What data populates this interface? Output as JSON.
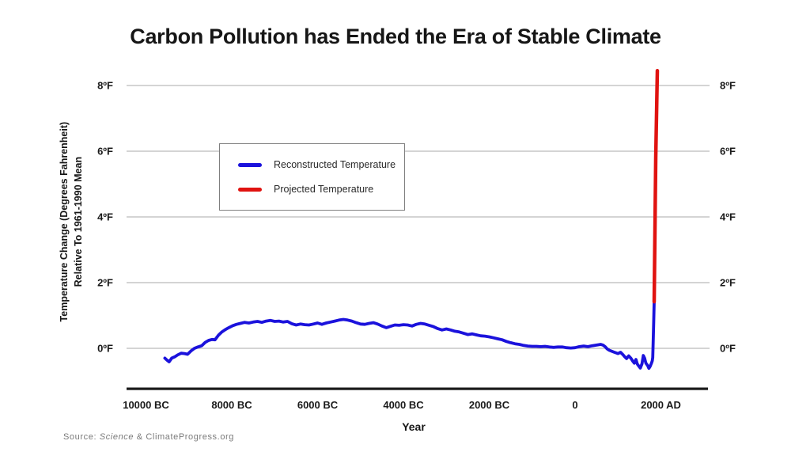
{
  "title": "Carbon Pollution has Ended the Era of Stable Climate",
  "source": {
    "prefix": "Source: ",
    "italic": "Science",
    "rest": " & ClimateProgress.org"
  },
  "chart_data": {
    "type": "line",
    "title": "Carbon Pollution has Ended the Era of Stable Climate",
    "x_axis": {
      "label": "Year",
      "ticks": [
        {
          "year": -10000,
          "label": "10000 BC"
        },
        {
          "year": -8000,
          "label": "8000 BC"
        },
        {
          "year": -6000,
          "label": "6000 BC"
        },
        {
          "year": -4000,
          "label": "4000 BC"
        },
        {
          "year": -2000,
          "label": "2000 BC"
        },
        {
          "year": 0,
          "label": "0"
        },
        {
          "year": 2000,
          "label": "2000 AD"
        }
      ],
      "range_years": [
        -10450,
        3130
      ]
    },
    "y_axis": {
      "label_line1": "Temperature Change (Degrees Fahrenheit)",
      "label_line2": "Relative To 1961-1990 Mean",
      "ticks": [
        {
          "value": 0,
          "label": "0ºF"
        },
        {
          "value": 2,
          "label": "2ºF"
        },
        {
          "value": 4,
          "label": "4ºF"
        },
        {
          "value": 6,
          "label": "6ºF"
        },
        {
          "value": 8,
          "label": "8ºF"
        }
      ],
      "range_f": [
        -1.2,
        8.6
      ],
      "grid": true,
      "labels_on_both_sides": true
    },
    "legend": {
      "position": "upper-left-inside",
      "items": [
        {
          "name": "Reconstructed Temperature",
          "color": "#1b12dc"
        },
        {
          "name": "Projected Temperature",
          "color": "#e01310"
        }
      ]
    },
    "colors": {
      "grid": "#a8a8a8",
      "axis_line": "#1a1a1a",
      "text": "#1a1a1a"
    },
    "series": [
      {
        "name": "Reconstructed Temperature",
        "color": "#1b12dc",
        "width": 3.8,
        "points": [
          [
            -9560,
            -0.3
          ],
          [
            -9510,
            -0.36
          ],
          [
            -9460,
            -0.41
          ],
          [
            -9400,
            -0.3
          ],
          [
            -9330,
            -0.26
          ],
          [
            -9260,
            -0.2
          ],
          [
            -9180,
            -0.15
          ],
          [
            -9100,
            -0.16
          ],
          [
            -9030,
            -0.18
          ],
          [
            -8950,
            -0.08
          ],
          [
            -8870,
            0.0
          ],
          [
            -8790,
            0.04
          ],
          [
            -8700,
            0.08
          ],
          [
            -8620,
            0.18
          ],
          [
            -8540,
            0.24
          ],
          [
            -8460,
            0.27
          ],
          [
            -8390,
            0.26
          ],
          [
            -8310,
            0.4
          ],
          [
            -8230,
            0.5
          ],
          [
            -8150,
            0.57
          ],
          [
            -8070,
            0.63
          ],
          [
            -7980,
            0.69
          ],
          [
            -7890,
            0.73
          ],
          [
            -7800,
            0.76
          ],
          [
            -7700,
            0.79
          ],
          [
            -7600,
            0.77
          ],
          [
            -7500,
            0.8
          ],
          [
            -7400,
            0.82
          ],
          [
            -7300,
            0.79
          ],
          [
            -7200,
            0.83
          ],
          [
            -7100,
            0.85
          ],
          [
            -7000,
            0.82
          ],
          [
            -6900,
            0.83
          ],
          [
            -6800,
            0.8
          ],
          [
            -6700,
            0.82
          ],
          [
            -6600,
            0.75
          ],
          [
            -6500,
            0.71
          ],
          [
            -6400,
            0.74
          ],
          [
            -6300,
            0.72
          ],
          [
            -6200,
            0.71
          ],
          [
            -6100,
            0.74
          ],
          [
            -6000,
            0.77
          ],
          [
            -5900,
            0.73
          ],
          [
            -5800,
            0.77
          ],
          [
            -5700,
            0.8
          ],
          [
            -5600,
            0.83
          ],
          [
            -5500,
            0.86
          ],
          [
            -5400,
            0.88
          ],
          [
            -5300,
            0.86
          ],
          [
            -5200,
            0.83
          ],
          [
            -5100,
            0.78
          ],
          [
            -5000,
            0.74
          ],
          [
            -4900,
            0.73
          ],
          [
            -4800,
            0.76
          ],
          [
            -4700,
            0.78
          ],
          [
            -4600,
            0.74
          ],
          [
            -4500,
            0.68
          ],
          [
            -4400,
            0.63
          ],
          [
            -4300,
            0.67
          ],
          [
            -4200,
            0.71
          ],
          [
            -4100,
            0.7
          ],
          [
            -4000,
            0.72
          ],
          [
            -3900,
            0.71
          ],
          [
            -3800,
            0.68
          ],
          [
            -3700,
            0.73
          ],
          [
            -3600,
            0.76
          ],
          [
            -3500,
            0.74
          ],
          [
            -3400,
            0.7
          ],
          [
            -3300,
            0.66
          ],
          [
            -3200,
            0.6
          ],
          [
            -3100,
            0.56
          ],
          [
            -3000,
            0.59
          ],
          [
            -2900,
            0.56
          ],
          [
            -2800,
            0.52
          ],
          [
            -2700,
            0.5
          ],
          [
            -2600,
            0.46
          ],
          [
            -2500,
            0.42
          ],
          [
            -2400,
            0.44
          ],
          [
            -2300,
            0.41
          ],
          [
            -2200,
            0.38
          ],
          [
            -2100,
            0.37
          ],
          [
            -2000,
            0.35
          ],
          [
            -1900,
            0.32
          ],
          [
            -1800,
            0.29
          ],
          [
            -1700,
            0.26
          ],
          [
            -1600,
            0.21
          ],
          [
            -1500,
            0.17
          ],
          [
            -1400,
            0.14
          ],
          [
            -1300,
            0.12
          ],
          [
            -1200,
            0.09
          ],
          [
            -1100,
            0.07
          ],
          [
            -1000,
            0.06
          ],
          [
            -900,
            0.06
          ],
          [
            -800,
            0.05
          ],
          [
            -700,
            0.06
          ],
          [
            -600,
            0.04
          ],
          [
            -500,
            0.03
          ],
          [
            -400,
            0.04
          ],
          [
            -300,
            0.04
          ],
          [
            -200,
            0.02
          ],
          [
            -100,
            0.01
          ],
          [
            0,
            0.02
          ],
          [
            100,
            0.05
          ],
          [
            200,
            0.07
          ],
          [
            300,
            0.05
          ],
          [
            400,
            0.08
          ],
          [
            500,
            0.1
          ],
          [
            600,
            0.12
          ],
          [
            650,
            0.1
          ],
          [
            700,
            0.05
          ],
          [
            750,
            -0.02
          ],
          [
            800,
            -0.06
          ],
          [
            900,
            -0.11
          ],
          [
            1000,
            -0.16
          ],
          [
            1060,
            -0.12
          ],
          [
            1120,
            -0.2
          ],
          [
            1160,
            -0.26
          ],
          [
            1200,
            -0.31
          ],
          [
            1250,
            -0.23
          ],
          [
            1300,
            -0.3
          ],
          [
            1340,
            -0.38
          ],
          [
            1380,
            -0.45
          ],
          [
            1420,
            -0.34
          ],
          [
            1450,
            -0.48
          ],
          [
            1490,
            -0.55
          ],
          [
            1520,
            -0.6
          ],
          [
            1560,
            -0.47
          ],
          [
            1590,
            -0.22
          ],
          [
            1620,
            -0.3
          ],
          [
            1650,
            -0.45
          ],
          [
            1690,
            -0.52
          ],
          [
            1720,
            -0.61
          ],
          [
            1750,
            -0.55
          ],
          [
            1780,
            -0.45
          ],
          [
            1800,
            -0.38
          ],
          [
            1810,
            -0.28
          ],
          [
            1820,
            0.15
          ],
          [
            1832,
            0.8
          ],
          [
            1843,
            1.42
          ]
        ]
      },
      {
        "name": "Projected Temperature",
        "color": "#e01310",
        "width": 4.5,
        "points": [
          [
            1843,
            1.42
          ],
          [
            1880,
            5.8
          ],
          [
            1917,
            8.45
          ]
        ]
      }
    ]
  }
}
